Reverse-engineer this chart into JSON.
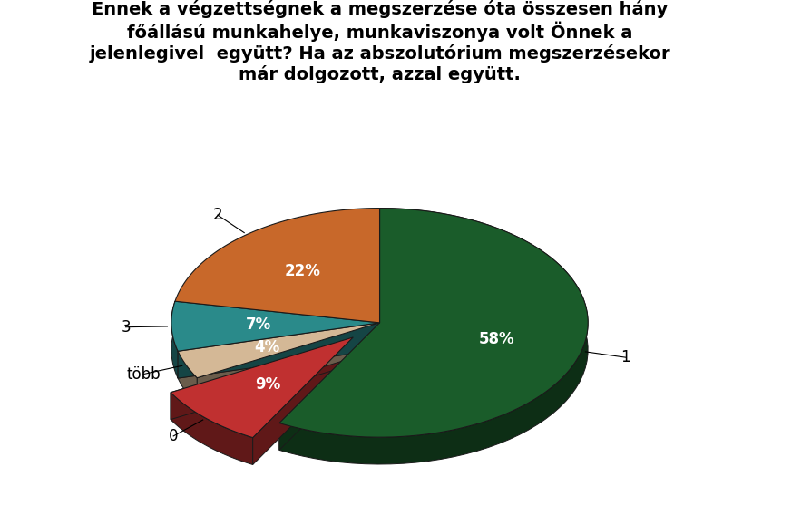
{
  "title": "Ennek a végzettségnek a megszerzése óta összesen hány\nfőállású munkahelye, munkaviszonya volt Önnek a\njelenlegivel  együtt? Ha az abszolutórium megszerzésekor\nmár dolgozott, azzal együtt.",
  "labels": [
    "1",
    "2",
    "3",
    "több",
    "0"
  ],
  "values": [
    58,
    22,
    7,
    4,
    9
  ],
  "colors": [
    "#1a5c2a",
    "#c8682a",
    "#2a8a8a",
    "#d4b896",
    "#c03030"
  ],
  "explode_idx": 4,
  "explode_amount": 0.18,
  "pct_labels": [
    "58%",
    "22%",
    "7%",
    "4%",
    "9%"
  ],
  "label_colors": [
    "white",
    "white",
    "white",
    "white",
    "white"
  ],
  "title_fontsize": 14,
  "pct_fontsize": 12,
  "label_fontsize": 12,
  "startangle": 90
}
